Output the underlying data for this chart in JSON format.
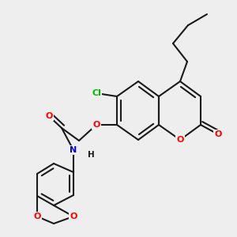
{
  "bg_color": "#eeeeee",
  "bond_color": "#1a1a1a",
  "bond_width": 1.5,
  "atom_colors": {
    "O": "#ff0000",
    "N": "#0000cc",
    "Cl": "#00bb00",
    "C": "#1a1a1a",
    "H": "#1a1a1a"
  },
  "font_size": 8.5,
  "fig_size": [
    3.0,
    3.0
  ],
  "dpi": 100
}
